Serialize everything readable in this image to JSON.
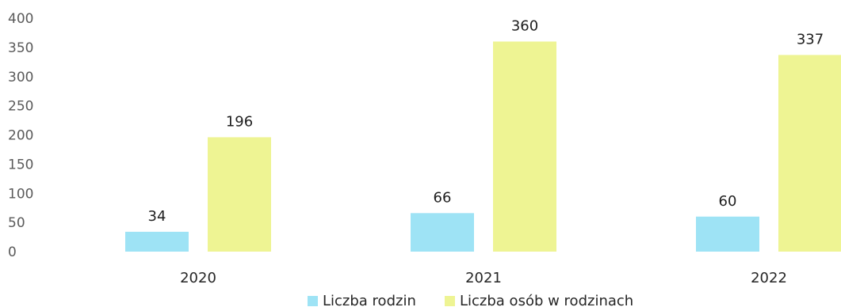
{
  "chart_data": {
    "type": "bar",
    "categories": [
      "2020",
      "2021",
      "2022"
    ],
    "series": [
      {
        "name": "Liczba rodzin",
        "values": [
          34,
          66,
          60
        ],
        "color": "#9ee3f5"
      },
      {
        "name": "Liczba osób w rodzinach",
        "values": [
          196,
          360,
          337
        ],
        "color": "#eef493"
      }
    ],
    "yticks": [
      "0",
      "50",
      "100",
      "150",
      "200",
      "250",
      "300",
      "350",
      "400"
    ],
    "ylim": [
      0,
      400
    ],
    "grid": false,
    "legend_position": "bottom-center"
  }
}
